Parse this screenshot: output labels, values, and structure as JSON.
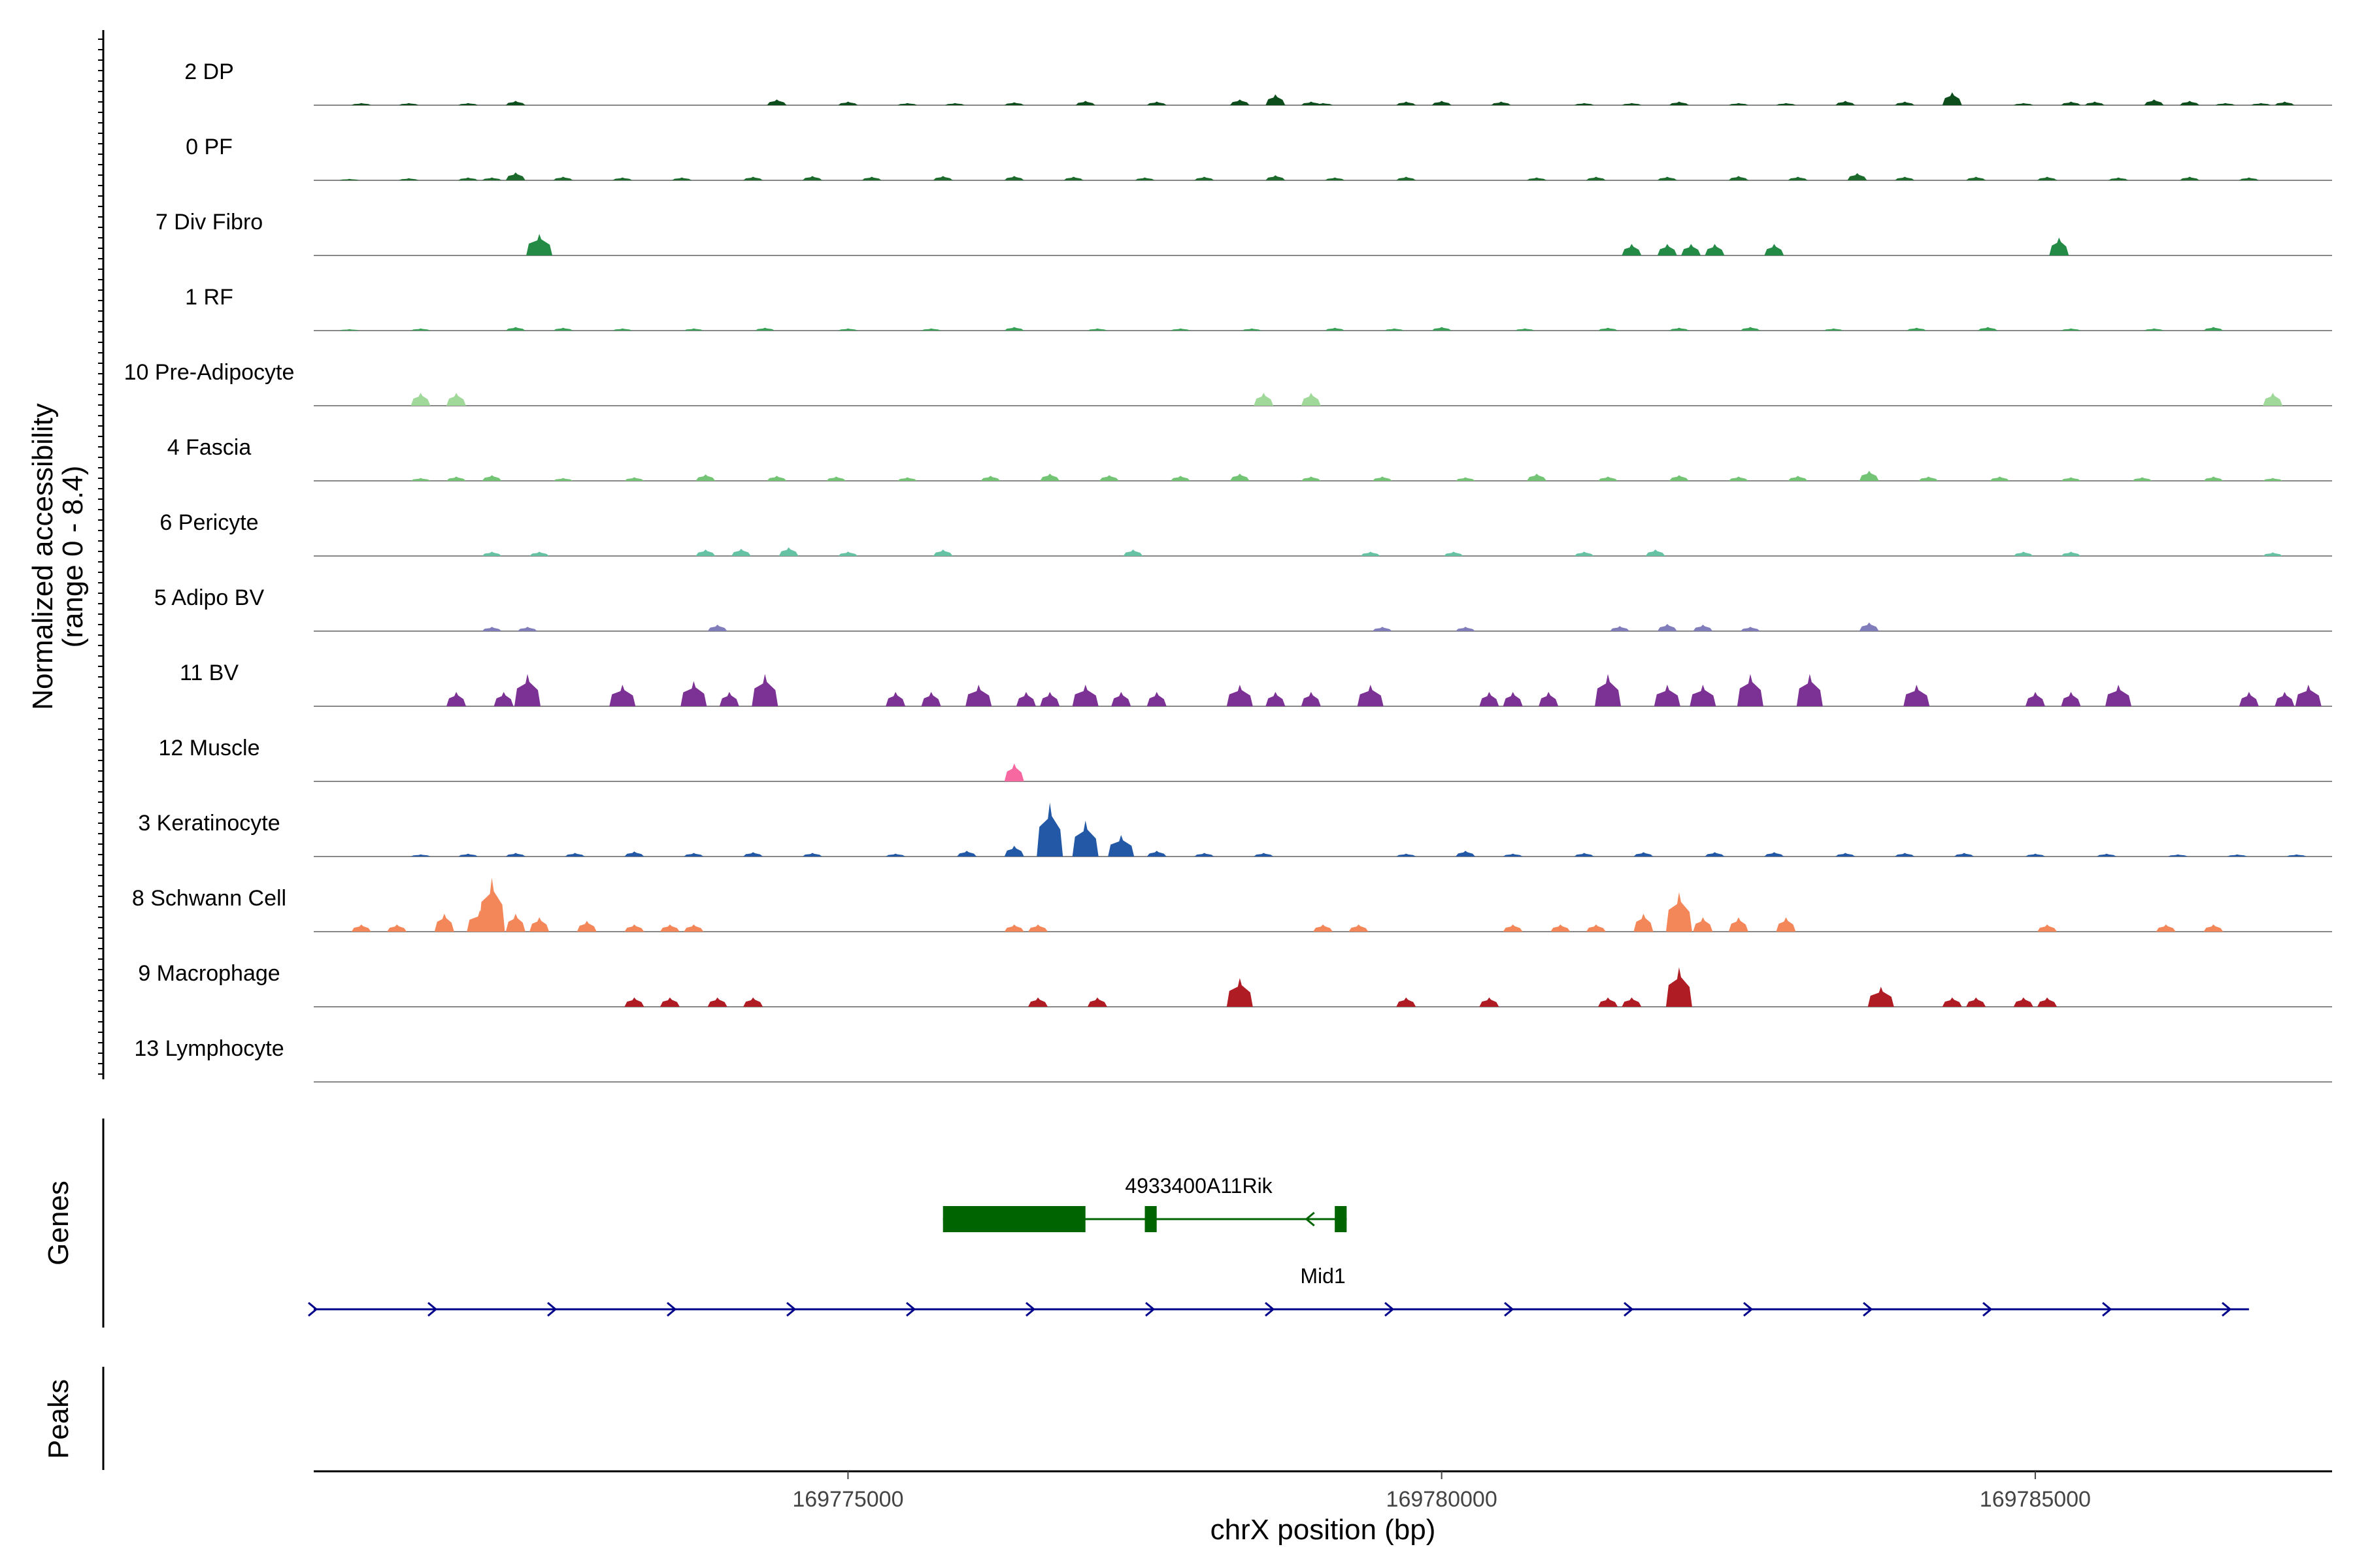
{
  "chart_data": {
    "type": "area",
    "title": "",
    "xlabel": "chrX position (bp)",
    "ylabel_line1": "Normalized accessibility",
    "ylabel_line2": "(range 0 - 8.4)",
    "ylim": [
      0,
      8.4
    ],
    "xlim": [
      169770500,
      169787500
    ],
    "x_ticks": [
      169775000,
      169780000,
      169785000
    ],
    "x_tick_labels": [
      "169775000",
      "169780000",
      "169785000"
    ],
    "tracks": [
      {
        "name": "2 DP",
        "color": "#0d4d1c",
        "peaks": [
          [
            169770900,
            0.3
          ],
          [
            169771300,
            0.3
          ],
          [
            169771800,
            0.3
          ],
          [
            169772200,
            0.6
          ],
          [
            169774400,
            0.8
          ],
          [
            169775000,
            0.5
          ],
          [
            169775500,
            0.3
          ],
          [
            169775900,
            0.3
          ],
          [
            169776400,
            0.4
          ],
          [
            169777000,
            0.6
          ],
          [
            169777600,
            0.5
          ],
          [
            169778300,
            0.8
          ],
          [
            169778600,
            1.5
          ],
          [
            169778900,
            0.5
          ],
          [
            169779000,
            0.3
          ],
          [
            169779700,
            0.5
          ],
          [
            169780000,
            0.6
          ],
          [
            169780500,
            0.5
          ],
          [
            169781200,
            0.3
          ],
          [
            169781600,
            0.3
          ],
          [
            169782000,
            0.5
          ],
          [
            169782500,
            0.3
          ],
          [
            169782900,
            0.3
          ],
          [
            169783400,
            0.6
          ],
          [
            169783900,
            0.5
          ],
          [
            169784300,
            1.8
          ],
          [
            169784900,
            0.3
          ],
          [
            169785300,
            0.5
          ],
          [
            169785500,
            0.5
          ],
          [
            169786000,
            0.8
          ],
          [
            169786300,
            0.6
          ],
          [
            169786600,
            0.3
          ],
          [
            169786900,
            0.3
          ],
          [
            169787100,
            0.5
          ]
        ]
      },
      {
        "name": "0 PF",
        "color": "#1c6b2d",
        "peaks": [
          [
            169770800,
            0.2
          ],
          [
            169771300,
            0.3
          ],
          [
            169771800,
            0.4
          ],
          [
            169772000,
            0.4
          ],
          [
            169772200,
            1.1
          ],
          [
            169772600,
            0.5
          ],
          [
            169773100,
            0.4
          ],
          [
            169773600,
            0.4
          ],
          [
            169774200,
            0.5
          ],
          [
            169774700,
            0.6
          ],
          [
            169775200,
            0.5
          ],
          [
            169775800,
            0.6
          ],
          [
            169776400,
            0.6
          ],
          [
            169776900,
            0.5
          ],
          [
            169777500,
            0.4
          ],
          [
            169778000,
            0.5
          ],
          [
            169778600,
            0.7
          ],
          [
            169779100,
            0.4
          ],
          [
            169779700,
            0.5
          ],
          [
            169780800,
            0.4
          ],
          [
            169781300,
            0.5
          ],
          [
            169781900,
            0.5
          ],
          [
            169782500,
            0.6
          ],
          [
            169783000,
            0.5
          ],
          [
            169783500,
            1.0
          ],
          [
            169783900,
            0.5
          ],
          [
            169784500,
            0.5
          ],
          [
            169785100,
            0.5
          ],
          [
            169785700,
            0.4
          ],
          [
            169786300,
            0.5
          ],
          [
            169786800,
            0.4
          ]
        ]
      },
      {
        "name": "7 Div Fibro",
        "color": "#238b45",
        "peaks": [
          [
            169772400,
            3.0
          ],
          [
            169781600,
            1.6
          ],
          [
            169781900,
            1.6
          ],
          [
            169782100,
            1.6
          ],
          [
            169782300,
            1.6
          ],
          [
            169782800,
            1.6
          ],
          [
            169785200,
            2.5
          ]
        ]
      },
      {
        "name": "1 RF",
        "color": "#37a055",
        "peaks": [
          [
            169770800,
            0.2
          ],
          [
            169771400,
            0.3
          ],
          [
            169772200,
            0.5
          ],
          [
            169772600,
            0.4
          ],
          [
            169773100,
            0.3
          ],
          [
            169773700,
            0.3
          ],
          [
            169774300,
            0.4
          ],
          [
            169775000,
            0.3
          ],
          [
            169775700,
            0.3
          ],
          [
            169776400,
            0.5
          ],
          [
            169777100,
            0.3
          ],
          [
            169777800,
            0.3
          ],
          [
            169778400,
            0.3
          ],
          [
            169779100,
            0.4
          ],
          [
            169779600,
            0.3
          ],
          [
            169780000,
            0.5
          ],
          [
            169780700,
            0.3
          ],
          [
            169781400,
            0.4
          ],
          [
            169782000,
            0.4
          ],
          [
            169782600,
            0.5
          ],
          [
            169783300,
            0.3
          ],
          [
            169784000,
            0.4
          ],
          [
            169784600,
            0.5
          ],
          [
            169785300,
            0.3
          ],
          [
            169786000,
            0.3
          ],
          [
            169786500,
            0.5
          ]
        ]
      },
      {
        "name": "10 Pre-Adipocyte",
        "color": "#a1d99b",
        "peaks": [
          [
            169771400,
            1.8
          ],
          [
            169771700,
            1.8
          ],
          [
            169778500,
            1.8
          ],
          [
            169778900,
            1.8
          ],
          [
            169787000,
            1.8
          ]
        ]
      },
      {
        "name": "4 Fascia",
        "color": "#74c476",
        "peaks": [
          [
            169771400,
            0.4
          ],
          [
            169771700,
            0.6
          ],
          [
            169772000,
            0.8
          ],
          [
            169772600,
            0.4
          ],
          [
            169773200,
            0.5
          ],
          [
            169773800,
            0.9
          ],
          [
            169774400,
            0.7
          ],
          [
            169774900,
            0.6
          ],
          [
            169775500,
            0.5
          ],
          [
            169776200,
            0.7
          ],
          [
            169776700,
            1.0
          ],
          [
            169777200,
            0.8
          ],
          [
            169777800,
            0.7
          ],
          [
            169778300,
            1.0
          ],
          [
            169778900,
            0.6
          ],
          [
            169779500,
            0.6
          ],
          [
            169780200,
            0.5
          ],
          [
            169780800,
            1.0
          ],
          [
            169781400,
            0.6
          ],
          [
            169782000,
            0.8
          ],
          [
            169782500,
            0.6
          ],
          [
            169783000,
            0.7
          ],
          [
            169783600,
            1.4
          ],
          [
            169784100,
            0.6
          ],
          [
            169784700,
            0.6
          ],
          [
            169785300,
            0.5
          ],
          [
            169785900,
            0.5
          ],
          [
            169786500,
            0.6
          ],
          [
            169787000,
            0.4
          ]
        ]
      },
      {
        "name": "6 Pericyte",
        "color": "#66c2a4",
        "peaks": [
          [
            169772000,
            0.6
          ],
          [
            169772400,
            0.6
          ],
          [
            169773800,
            0.9
          ],
          [
            169774100,
            1.0
          ],
          [
            169774500,
            1.2
          ],
          [
            169775000,
            0.6
          ],
          [
            169775800,
            0.9
          ],
          [
            169777400,
            0.9
          ],
          [
            169779400,
            0.6
          ],
          [
            169780100,
            0.6
          ],
          [
            169781200,
            0.6
          ],
          [
            169781800,
            0.9
          ],
          [
            169784900,
            0.6
          ],
          [
            169785300,
            0.6
          ],
          [
            169787000,
            0.5
          ]
        ]
      },
      {
        "name": "5 Adipo BV",
        "color": "#807dba",
        "peaks": [
          [
            169772000,
            0.6
          ],
          [
            169772300,
            0.6
          ],
          [
            169773900,
            0.9
          ],
          [
            169779500,
            0.6
          ],
          [
            169780200,
            0.6
          ],
          [
            169781500,
            0.7
          ],
          [
            169781900,
            1.0
          ],
          [
            169782200,
            0.9
          ],
          [
            169782600,
            0.6
          ],
          [
            169783600,
            1.2
          ]
        ]
      },
      {
        "name": "11 BV",
        "color": "#7b3294",
        "peaks": [
          [
            169771700,
            2.0
          ],
          [
            169772100,
            2.0
          ],
          [
            169772300,
            4.5
          ],
          [
            169773100,
            3.0
          ],
          [
            169773700,
            3.5
          ],
          [
            169774000,
            2.0
          ],
          [
            169774300,
            4.5
          ],
          [
            169775400,
            2.0
          ],
          [
            169775700,
            2.0
          ],
          [
            169776100,
            3.0
          ],
          [
            169776500,
            2.0
          ],
          [
            169776700,
            2.0
          ],
          [
            169777000,
            3.0
          ],
          [
            169777300,
            2.0
          ],
          [
            169777600,
            2.0
          ],
          [
            169778300,
            3.0
          ],
          [
            169778600,
            2.0
          ],
          [
            169778900,
            2.0
          ],
          [
            169779400,
            3.0
          ],
          [
            169780400,
            2.0
          ],
          [
            169780600,
            2.0
          ],
          [
            169780900,
            2.0
          ],
          [
            169781400,
            4.5
          ],
          [
            169781900,
            3.0
          ],
          [
            169782200,
            3.0
          ],
          [
            169782600,
            4.5
          ],
          [
            169783100,
            4.5
          ],
          [
            169784000,
            3.0
          ],
          [
            169785000,
            2.0
          ],
          [
            169785300,
            2.0
          ],
          [
            169785700,
            3.0
          ],
          [
            169786800,
            2.0
          ],
          [
            169787100,
            2.0
          ],
          [
            169787300,
            3.0
          ]
        ]
      },
      {
        "name": "12 Muscle",
        "color": "#f768a1",
        "peaks": [
          [
            169776400,
            2.5
          ]
        ]
      },
      {
        "name": "3 Keratinocyte",
        "color": "#2258a5",
        "peaks": [
          [
            169771400,
            0.3
          ],
          [
            169771800,
            0.4
          ],
          [
            169772200,
            0.5
          ],
          [
            169772700,
            0.5
          ],
          [
            169773200,
            0.7
          ],
          [
            169773700,
            0.5
          ],
          [
            169774200,
            0.6
          ],
          [
            169774700,
            0.5
          ],
          [
            169775400,
            0.4
          ],
          [
            169776000,
            0.8
          ],
          [
            169776400,
            1.5
          ],
          [
            169776700,
            7.5
          ],
          [
            169777000,
            5.0
          ],
          [
            169777300,
            3.0
          ],
          [
            169777600,
            0.8
          ],
          [
            169778000,
            0.5
          ],
          [
            169778500,
            0.5
          ],
          [
            169779700,
            0.4
          ],
          [
            169780200,
            0.8
          ],
          [
            169780600,
            0.4
          ],
          [
            169781200,
            0.5
          ],
          [
            169781700,
            0.6
          ],
          [
            169782300,
            0.6
          ],
          [
            169782800,
            0.6
          ],
          [
            169783400,
            0.5
          ],
          [
            169783900,
            0.5
          ],
          [
            169784400,
            0.5
          ],
          [
            169785000,
            0.4
          ],
          [
            169785600,
            0.4
          ],
          [
            169786200,
            0.3
          ],
          [
            169786700,
            0.3
          ],
          [
            169787200,
            0.3
          ]
        ]
      },
      {
        "name": "8 Schwann Cell",
        "color": "#f4875a",
        "peaks": [
          [
            169770900,
            1.0
          ],
          [
            169771200,
            1.0
          ],
          [
            169771600,
            2.5
          ],
          [
            169771900,
            3.0
          ],
          [
            169772000,
            7.5
          ],
          [
            169772200,
            2.5
          ],
          [
            169772400,
            2.0
          ],
          [
            169772800,
            1.5
          ],
          [
            169773200,
            1.0
          ],
          [
            169773500,
            1.0
          ],
          [
            169773700,
            1.0
          ],
          [
            169776400,
            1.0
          ],
          [
            169776600,
            1.0
          ],
          [
            169779000,
            1.0
          ],
          [
            169779300,
            1.0
          ],
          [
            169780600,
            1.0
          ],
          [
            169781000,
            1.0
          ],
          [
            169781300,
            1.0
          ],
          [
            169781700,
            2.5
          ],
          [
            169782000,
            5.5
          ],
          [
            169782200,
            2.0
          ],
          [
            169782500,
            2.0
          ],
          [
            169782900,
            2.0
          ],
          [
            169785100,
            1.0
          ],
          [
            169786100,
            1.0
          ],
          [
            169786500,
            1.0
          ]
        ]
      },
      {
        "name": "9 Macrophage",
        "color": "#b01c24",
        "peaks": [
          [
            169773200,
            1.3
          ],
          [
            169773500,
            1.3
          ],
          [
            169773900,
            1.3
          ],
          [
            169774200,
            1.3
          ],
          [
            169776600,
            1.3
          ],
          [
            169777100,
            1.3
          ],
          [
            169778300,
            4.0
          ],
          [
            169779700,
            1.3
          ],
          [
            169780400,
            1.3
          ],
          [
            169781400,
            1.3
          ],
          [
            169781600,
            1.3
          ],
          [
            169782000,
            5.5
          ],
          [
            169783700,
            2.8
          ],
          [
            169784300,
            1.3
          ],
          [
            169784500,
            1.3
          ],
          [
            169784900,
            1.3
          ],
          [
            169785100,
            1.3
          ]
        ]
      },
      {
        "name": "13 Lymphocyte",
        "color": "#666666",
        "peaks": []
      }
    ],
    "genes_label": "Genes",
    "peaks_label": "Peaks",
    "genes": [
      {
        "name": "4933400A11Rik",
        "strand": "-",
        "start": 169775800,
        "end": 169779200,
        "color": "#006400",
        "exons": [
          [
            169775800,
            169777000
          ],
          [
            169777500,
            169777600
          ],
          [
            169779100,
            169779200
          ]
        ]
      },
      {
        "name": "Mid1",
        "strand": "+",
        "start": 169770500,
        "end": 169786800,
        "color": "#00008b",
        "exons": []
      }
    ]
  }
}
